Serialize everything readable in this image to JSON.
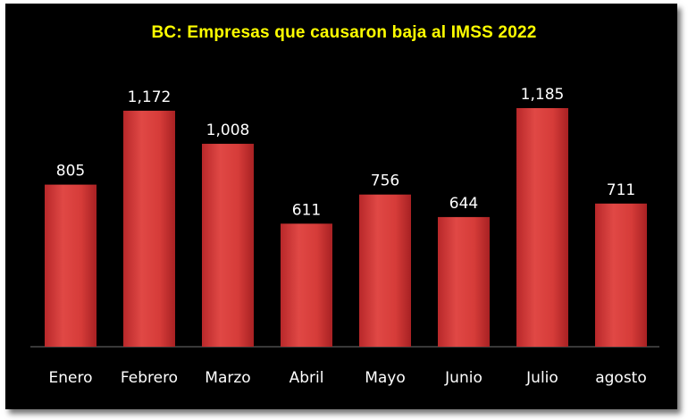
{
  "chart_data": {
    "type": "bar",
    "title": "BC: Empresas que causaron baja al IMSS 2022",
    "categories": [
      "Enero",
      "Febrero",
      "Marzo",
      "Abril",
      "Mayo",
      "Junio",
      "Julio",
      "agosto"
    ],
    "values": [
      805,
      1172,
      1008,
      611,
      756,
      644,
      1185,
      711
    ],
    "value_labels": [
      "805",
      "1,172",
      "1,008",
      "611",
      "756",
      "644",
      "1,185",
      "711"
    ],
    "xlabel": "",
    "ylabel": "",
    "ylim": [
      0,
      1400
    ],
    "grid": false,
    "legend": "none"
  },
  "colors": {
    "background": "#000000",
    "bar": "#d23a37",
    "title": "#ffff00",
    "text": "#ffffff"
  }
}
